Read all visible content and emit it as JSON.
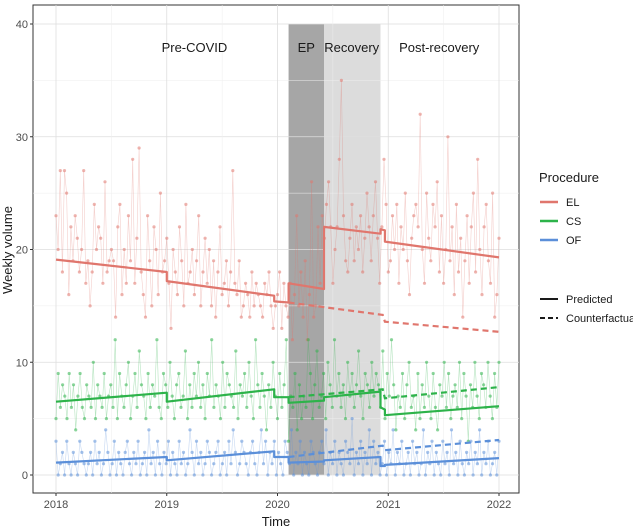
{
  "chart_data": {
    "type": "line",
    "xlabel": "Time",
    "ylabel": "Weekly volume",
    "xlim": [
      2018,
      2022
    ],
    "ylim": [
      0,
      40
    ],
    "x_ticks": [
      "2018",
      "2019",
      "2020",
      "2021",
      "2022"
    ],
    "y_ticks": [
      "0",
      "10",
      "20",
      "30",
      "40"
    ],
    "grid": true,
    "phases": [
      {
        "name": "Pre-COVID",
        "start": 2018.0,
        "end": 2020.1,
        "label_x": 2019.25,
        "fill": "none"
      },
      {
        "name": "EP",
        "start": 2020.1,
        "end": 2020.42,
        "label_x": 2020.26,
        "fill": "#a6a6a6"
      },
      {
        "name": "Recovery",
        "start": 2020.42,
        "end": 2020.93,
        "label_x": 2020.67,
        "fill": "#dcdcdc"
      },
      {
        "name": "Post-recovery",
        "start": 2020.93,
        "end": 2022.0,
        "label_x": 2021.46,
        "fill": "none"
      }
    ],
    "legend": {
      "title": "Procedure",
      "procedures": [
        "EL",
        "CS",
        "OF"
      ],
      "line_types": [
        "Predicted",
        "Counterfactual"
      ]
    },
    "series": [
      {
        "name": "EL",
        "color": "#e0766d",
        "predicted": [
          {
            "x": [
              2018.0,
              2019.0
            ],
            "y": [
              19.1,
              18.0
            ]
          },
          {
            "x": [
              2019.0,
              2019.97
            ],
            "y": [
              17.2,
              15.9
            ]
          },
          {
            "x": [
              2019.97,
              2020.1
            ],
            "y": [
              15.4,
              15.3
            ]
          },
          {
            "x": [
              2020.1,
              2020.42
            ],
            "y": [
              17.0,
              16.5
            ]
          },
          {
            "x": [
              2020.42,
              2020.93
            ],
            "y": [
              22.0,
              21.4
            ]
          },
          {
            "x": [
              2020.93,
              2020.97
            ],
            "y": [
              21.8,
              21.7
            ]
          },
          {
            "x": [
              2020.97,
              2022.0
            ],
            "y": [
              20.7,
              19.3
            ]
          }
        ],
        "counterfactual": {
          "x": [
            2020.1,
            2020.95,
            2020.97,
            2022.0
          ],
          "y": [
            15.3,
            14.2,
            13.6,
            12.7
          ]
        },
        "weekly_points": [
          23,
          20,
          27,
          18,
          27,
          25,
          16,
          22,
          19,
          23,
          21,
          18,
          20,
          27,
          17,
          19,
          15,
          18,
          24,
          20,
          22,
          21,
          17,
          26,
          18,
          19,
          20,
          19,
          14,
          22,
          24,
          16,
          20,
          17,
          23,
          19,
          28,
          17,
          21,
          29,
          18,
          16,
          14,
          23,
          19,
          15,
          22,
          20,
          16,
          25,
          18,
          19,
          21,
          17,
          13,
          20,
          18,
          16,
          22,
          19,
          15,
          24,
          17,
          18,
          20,
          16,
          19,
          23,
          15,
          18,
          21,
          17,
          20,
          15,
          19,
          14,
          18,
          22,
          16,
          17,
          19,
          15,
          18,
          27,
          17,
          16,
          19,
          14,
          15,
          17,
          16,
          14,
          18,
          15,
          17,
          16,
          15,
          14,
          17,
          16,
          18,
          15,
          13,
          15,
          16,
          18,
          13,
          17,
          15,
          14,
          17,
          12,
          16,
          23,
          15,
          18,
          14,
          19,
          12,
          16,
          26,
          14,
          15,
          22,
          17,
          23,
          21,
          24,
          26,
          22,
          17,
          20,
          22,
          28,
          35,
          23,
          19,
          18,
          21,
          24,
          19,
          22,
          20,
          23,
          18,
          21,
          25,
          22,
          19,
          23,
          26,
          21,
          17,
          22,
          28,
          24,
          18,
          19,
          23,
          20,
          24,
          17,
          22,
          20,
          25,
          19,
          16,
          21,
          23,
          24,
          22,
          32,
          20,
          17,
          25,
          21,
          19,
          24,
          22,
          26,
          18,
          23,
          17,
          20,
          30,
          19,
          22,
          16,
          24,
          18,
          21,
          14,
          19,
          23,
          17,
          22,
          25,
          18,
          28,
          20,
          16,
          22,
          24,
          19,
          17,
          25,
          14,
          16,
          21
        ]
      },
      {
        "name": "CS",
        "color": "#2db34a",
        "predicted": [
          {
            "x": [
              2018.0,
              2019.0
            ],
            "y": [
              6.5,
              7.3
            ]
          },
          {
            "x": [
              2019.0,
              2019.97
            ],
            "y": [
              6.5,
              7.6
            ]
          },
          {
            "x": [
              2019.97,
              2020.1
            ],
            "y": [
              6.9,
              6.9
            ]
          },
          {
            "x": [
              2020.1,
              2020.42
            ],
            "y": [
              6.4,
              6.6
            ]
          },
          {
            "x": [
              2020.42,
              2020.93
            ],
            "y": [
              6.9,
              7.4
            ]
          },
          {
            "x": [
              2020.93,
              2020.97
            ],
            "y": [
              6.0,
              5.8
            ]
          },
          {
            "x": [
              2020.97,
              2022.0
            ],
            "y": [
              5.3,
              6.1
            ]
          }
        ],
        "counterfactual": {
          "x": [
            2020.1,
            2020.95,
            2020.97,
            2022.0
          ],
          "y": [
            6.9,
            7.6,
            6.8,
            7.8
          ]
        },
        "weekly_points": [
          5,
          9,
          6,
          8,
          7,
          5,
          9,
          6,
          8,
          4,
          7,
          9,
          6,
          5,
          8,
          7,
          6,
          10,
          5,
          8,
          7,
          6,
          9,
          5,
          7,
          8,
          6,
          12,
          5,
          9,
          7,
          6,
          8,
          10,
          5,
          7,
          9,
          6,
          11,
          8,
          7,
          5,
          9,
          6,
          8,
          7,
          12,
          6,
          5,
          9,
          8,
          6,
          10,
          7,
          5,
          8,
          9,
          6,
          7,
          11,
          5,
          8,
          6,
          9,
          7,
          10,
          6,
          8,
          5,
          9,
          7,
          12,
          6,
          8,
          7,
          5,
          10,
          6,
          9,
          8,
          7,
          6,
          11,
          5,
          8,
          7,
          9,
          6,
          10,
          7,
          5,
          12,
          8,
          6,
          9,
          7,
          4,
          8,
          6,
          10,
          7,
          5,
          9,
          6,
          8,
          12,
          3,
          7,
          6,
          9,
          4,
          8,
          5,
          7,
          6,
          12,
          9,
          5,
          8,
          11,
          6,
          7,
          9,
          5,
          10,
          8,
          6,
          12,
          7,
          9,
          6,
          8,
          5,
          10,
          7,
          9,
          6,
          8,
          11,
          7,
          5,
          9,
          8,
          6,
          10,
          7,
          9,
          8,
          6,
          11,
          5,
          9,
          7,
          12,
          8,
          4,
          7,
          6,
          9,
          5,
          8,
          10,
          6,
          7,
          4,
          9,
          5,
          8,
          6,
          10,
          7,
          5,
          9,
          6,
          4,
          8,
          7,
          10,
          6,
          9,
          5,
          7,
          8,
          6,
          10,
          5,
          9,
          7,
          3,
          8,
          6,
          10,
          7,
          5,
          9,
          8,
          6,
          10,
          7,
          5,
          9,
          6,
          10
        ]
      },
      {
        "name": "OF",
        "color": "#5b8fd9",
        "predicted": [
          {
            "x": [
              2018.0,
              2019.0
            ],
            "y": [
              1.1,
              1.6
            ]
          },
          {
            "x": [
              2019.0,
              2019.97
            ],
            "y": [
              1.3,
              2.1
            ]
          },
          {
            "x": [
              2019.97,
              2020.1
            ],
            "y": [
              1.6,
              1.6
            ]
          },
          {
            "x": [
              2020.1,
              2020.42
            ],
            "y": [
              1.1,
              1.2
            ]
          },
          {
            "x": [
              2020.42,
              2020.93
            ],
            "y": [
              1.3,
              1.6
            ]
          },
          {
            "x": [
              2020.93,
              2020.97
            ],
            "y": [
              0.8,
              0.8
            ]
          },
          {
            "x": [
              2020.97,
              2022.0
            ],
            "y": [
              0.9,
              1.5
            ]
          }
        ],
        "counterfactual": {
          "x": [
            2020.1,
            2020.95,
            2020.97,
            2022.0
          ],
          "y": [
            1.6,
            2.6,
            2.2,
            3.1
          ]
        },
        "weekly_points": [
          3,
          0,
          1,
          2,
          0,
          3,
          1,
          0,
          2,
          1,
          0,
          3,
          2,
          1,
          0,
          1,
          2,
          0,
          3,
          1,
          2,
          0,
          1,
          4,
          2,
          0,
          1,
          3,
          0,
          2,
          1,
          0,
          2,
          3,
          1,
          0,
          2,
          1,
          3,
          0,
          1,
          2,
          0,
          4,
          1,
          2,
          0,
          3,
          1,
          0,
          2,
          1,
          3,
          0,
          2,
          1,
          0,
          3,
          1,
          2,
          0,
          1,
          4,
          2,
          0,
          3,
          1,
          2,
          0,
          1,
          3,
          2,
          0,
          1,
          2,
          3,
          0,
          1,
          2,
          0,
          3,
          1,
          4,
          2,
          0,
          1,
          3,
          2,
          1,
          0,
          2,
          3,
          1,
          0,
          2,
          4,
          1,
          3,
          0,
          2,
          1,
          3,
          0,
          2,
          1,
          0,
          3,
          2,
          1,
          4,
          0,
          2,
          1,
          3,
          0,
          2,
          1,
          0,
          3,
          2,
          1,
          0,
          2,
          3,
          1,
          4,
          0,
          2,
          1,
          3,
          0,
          2,
          1,
          0,
          3,
          2,
          1,
          5,
          0,
          2,
          1,
          3,
          0,
          2,
          1,
          4,
          0,
          3,
          1,
          2,
          0,
          1,
          3,
          0,
          2,
          1,
          4,
          0,
          2,
          1,
          3,
          0,
          1,
          2,
          0,
          3,
          1,
          2,
          0,
          1,
          4,
          0,
          2,
          1,
          3,
          0,
          2,
          1,
          0,
          3,
          1,
          2,
          0,
          4,
          1,
          2,
          0,
          3,
          1,
          0,
          2,
          1,
          3,
          0,
          2,
          1,
          4,
          0,
          2,
          1,
          3,
          0,
          1,
          2,
          0,
          3
        ]
      }
    ]
  }
}
